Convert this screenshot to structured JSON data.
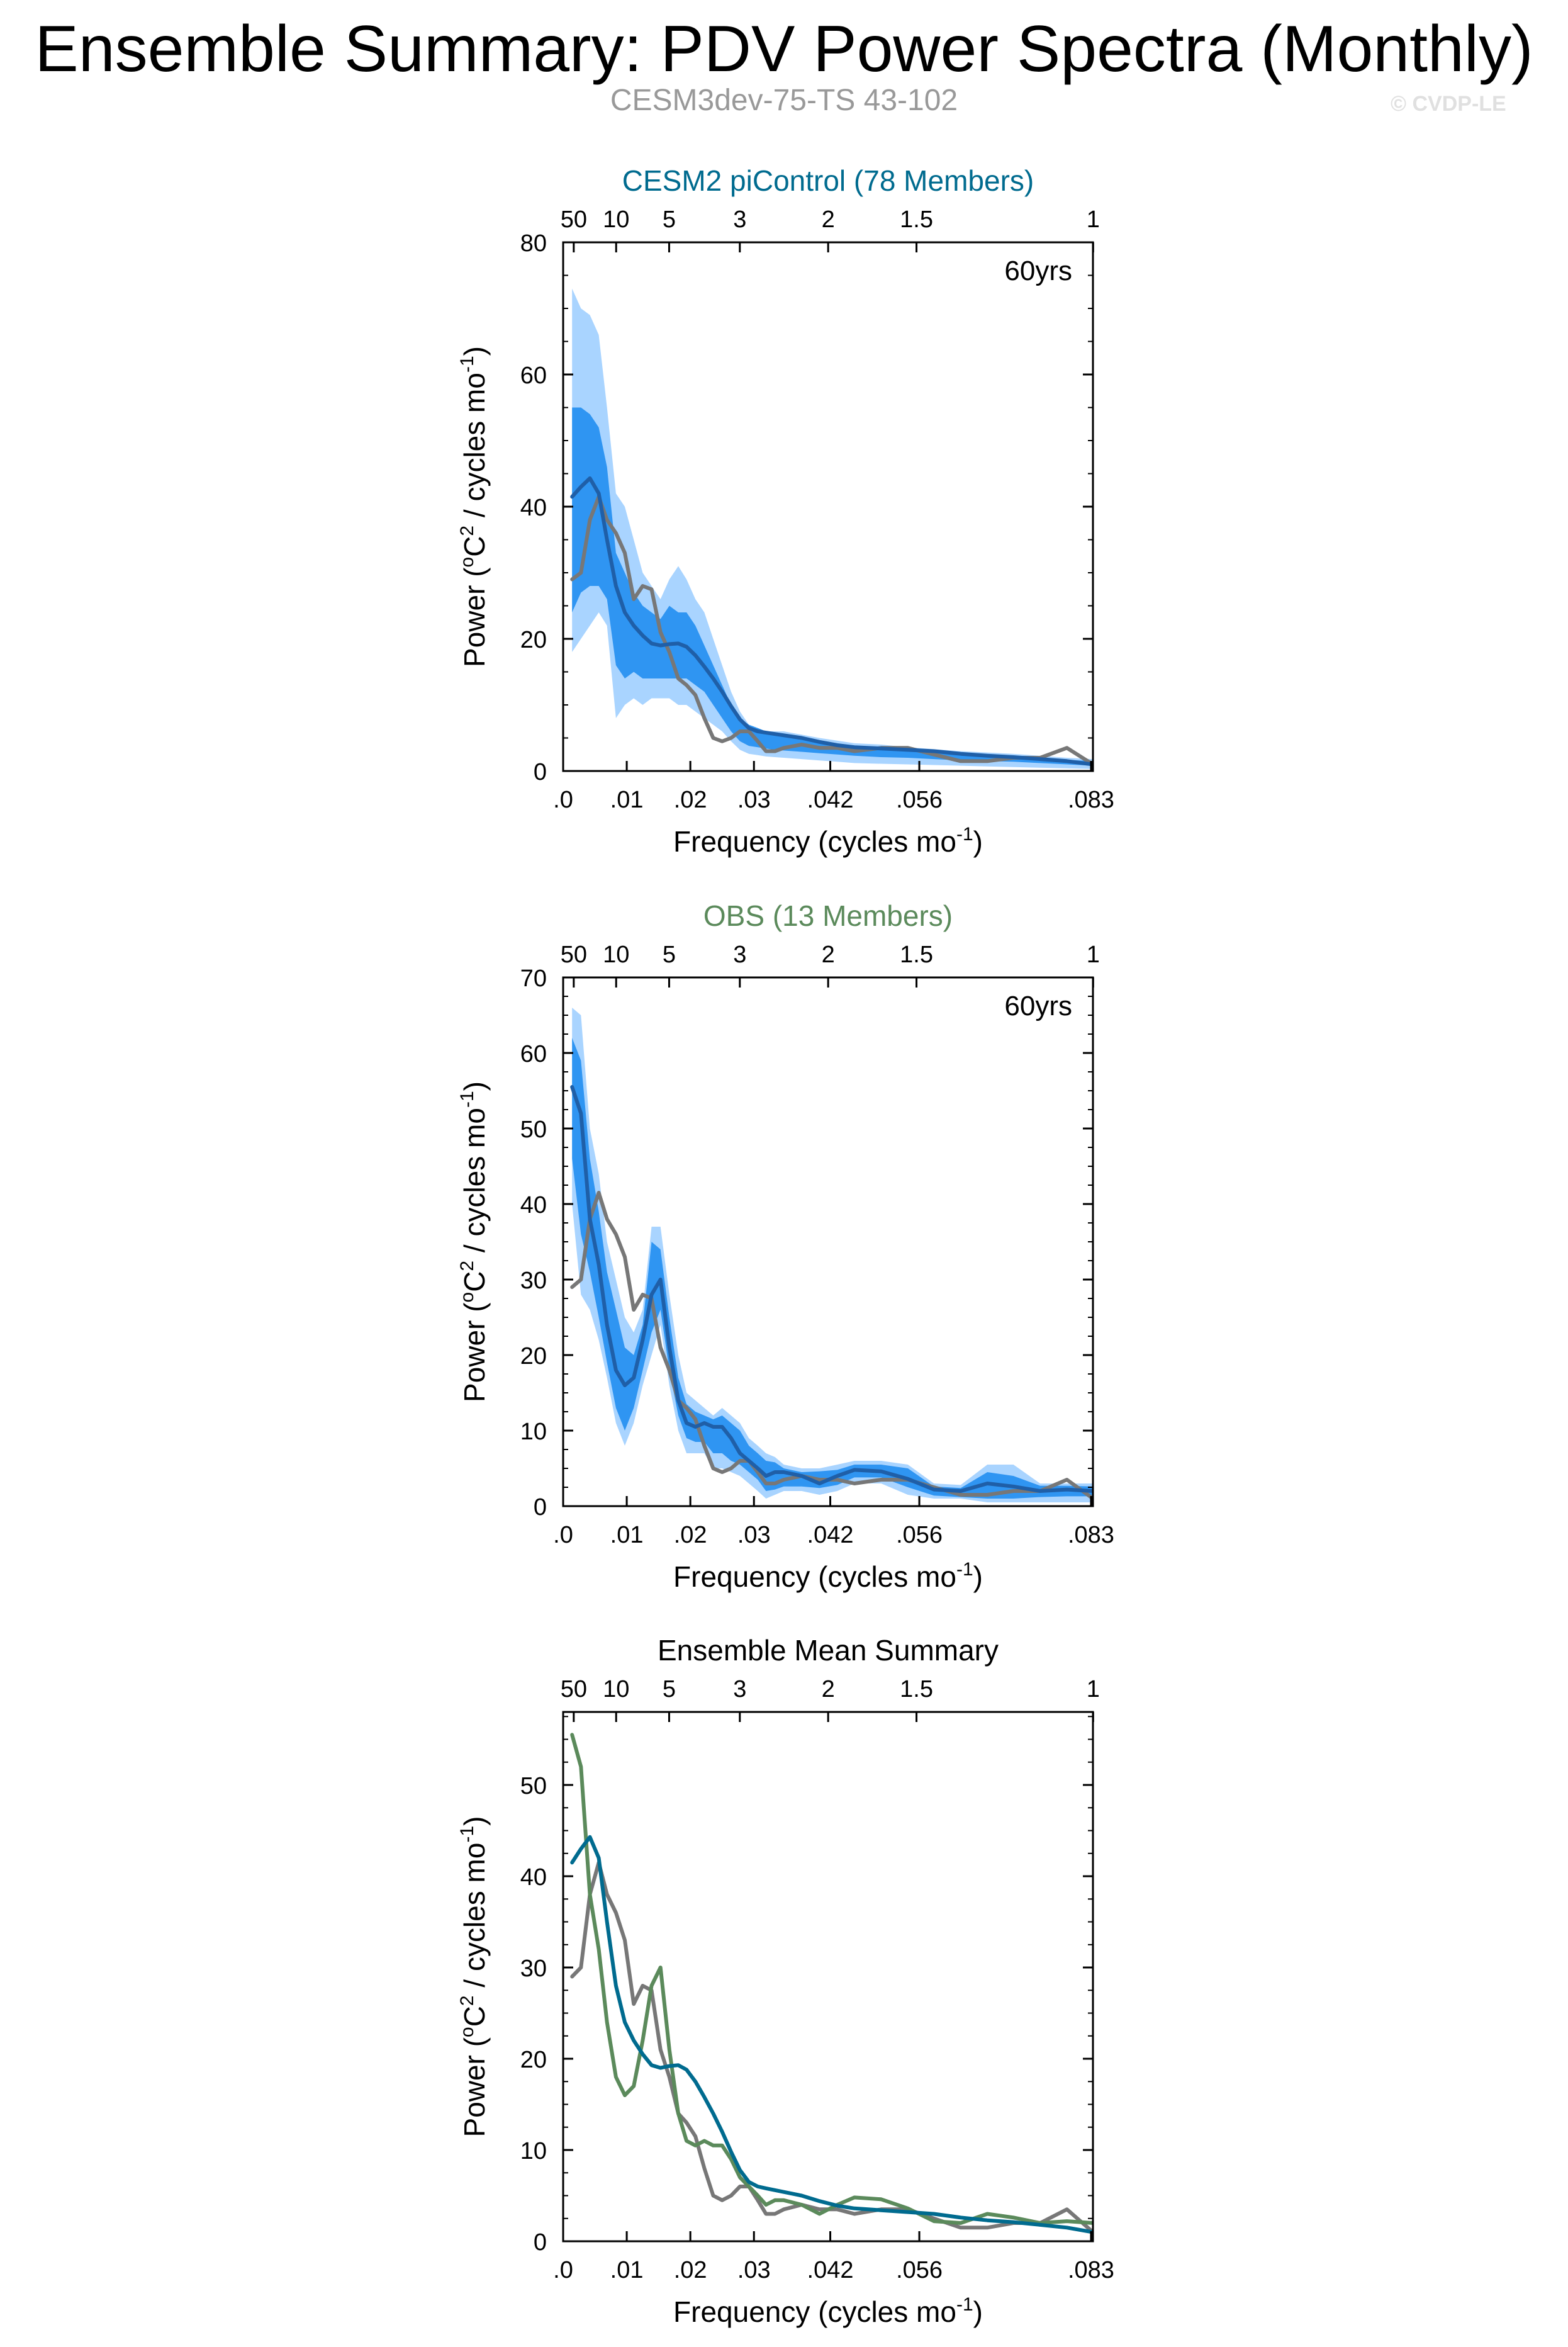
{
  "header": {
    "title": "Ensemble Summary: PDV Power Spectra (Monthly)",
    "subtitle": "CESM3dev-75-TS 43-102",
    "watermark": "© CVDP-LE"
  },
  "colors": {
    "model": "#006b8f",
    "obs": "#5b8a5b",
    "gray": "#777777",
    "blue_dark": "#1f5fa8",
    "band_outer": "#a9d4ff",
    "band_inner": "#2f95f2"
  },
  "chart_data": [
    {
      "type": "line",
      "title": "CESM2 piControl (78 Members)",
      "annotation": "60yrs",
      "xlabel": "Frequency (cycles mo",
      "xlabel_sup": "-1",
      "ylabel_pre": "Power (",
      "ylabel_sup1": "o",
      "ylabel_mid": "C",
      "ylabel_sup2": "2",
      "ylabel_post": " / cycles mo",
      "ylabel_sup3": "-1",
      "ylabel_end": ")",
      "xlim": [
        0,
        0.0833
      ],
      "ylim": [
        0,
        80
      ],
      "yticks": [
        0,
        20,
        40,
        60,
        80
      ],
      "xticks": [
        0,
        0.01,
        0.02,
        0.03,
        0.042,
        0.056,
        0.083
      ],
      "xtick_labels": [
        ".0",
        ".01",
        ".02",
        ".03",
        ".042",
        ".056",
        ".083"
      ],
      "period_ticks": [
        50,
        10,
        5,
        3,
        2,
        1.5,
        1
      ],
      "period_labels": [
        "50",
        "10",
        "5",
        "3",
        "2",
        "1.5",
        "1"
      ],
      "x": [
        0.0014,
        0.0028,
        0.0042,
        0.0056,
        0.0069,
        0.0083,
        0.0097,
        0.0111,
        0.0125,
        0.0139,
        0.0153,
        0.0167,
        0.0181,
        0.0194,
        0.0208,
        0.0222,
        0.0236,
        0.025,
        0.0264,
        0.0278,
        0.0292,
        0.0306,
        0.0319,
        0.0333,
        0.0347,
        0.0375,
        0.0403,
        0.0431,
        0.0458,
        0.05,
        0.0542,
        0.0583,
        0.0625,
        0.0667,
        0.0708,
        0.075,
        0.0792,
        0.0833
      ],
      "series": [
        {
          "key": "band_outer_hi",
          "values": [
            73,
            70,
            69,
            66,
            55,
            42,
            40,
            35,
            30,
            28,
            26,
            29,
            31,
            29,
            26,
            24,
            20,
            16,
            12,
            9,
            7,
            6.5,
            6,
            6,
            6,
            5.5,
            5,
            4.6,
            4.2,
            4,
            3.6,
            3.3,
            3,
            2.8,
            2.6,
            2.3,
            2,
            1.8
          ]
        },
        {
          "key": "band_outer_lo",
          "values": [
            18,
            20,
            22,
            24,
            22,
            8,
            10,
            11,
            10,
            11,
            11,
            11,
            10,
            10,
            9,
            8,
            7,
            6,
            4.5,
            3.2,
            2.6,
            2.4,
            2.2,
            2.1,
            2,
            1.8,
            1.6,
            1.4,
            1.2,
            1.1,
            1,
            0.9,
            0.8,
            0.7,
            0.6,
            0.5,
            0.4,
            0.3
          ]
        },
        {
          "key": "band_inner_hi",
          "values": [
            55,
            55,
            54,
            52,
            46,
            33,
            30,
            27,
            25,
            24,
            23,
            25,
            24,
            24,
            22,
            19,
            16,
            13,
            10,
            8,
            7,
            6.5,
            6,
            5.6,
            5.3,
            4.9,
            4.4,
            4,
            3.6,
            3.4,
            3.1,
            2.8,
            2.6,
            2.4,
            2.2,
            2,
            1.7,
            1.5
          ]
        },
        {
          "key": "band_inner_lo",
          "values": [
            24,
            27,
            28,
            28,
            26,
            16,
            14,
            15,
            14,
            14,
            14,
            14,
            14,
            14,
            13,
            12,
            10,
            8,
            6,
            4.5,
            3.8,
            3.6,
            3.4,
            3.2,
            3.1,
            2.9,
            2.7,
            2.5,
            2.3,
            2.1,
            2,
            1.8,
            1.6,
            1.5,
            1.4,
            1.2,
            1,
            0.8
          ]
        },
        {
          "key": "ens_mean",
          "values": [
            41.5,
            43,
            44.3,
            42,
            35,
            28,
            24,
            22,
            20.5,
            19.3,
            19,
            19.2,
            19.3,
            18.8,
            17.5,
            15.8,
            14,
            12,
            9.8,
            7.8,
            6.5,
            6,
            5.8,
            5.6,
            5.4,
            5,
            4.4,
            3.9,
            3.6,
            3.4,
            3.2,
            3,
            2.6,
            2.3,
            2.1,
            1.8,
            1.5,
            1
          ]
        },
        {
          "key": "obs_gray",
          "values": [
            29,
            30,
            38,
            41.5,
            38,
            36,
            33,
            26,
            28,
            27.5,
            21,
            18,
            14,
            13,
            11.5,
            8,
            5,
            4.5,
            5,
            6,
            6,
            4.5,
            3,
            3,
            3.5,
            4,
            3.5,
            3.5,
            3,
            3.5,
            3.5,
            2.5,
            1.5,
            1.5,
            2,
            2,
            3.5,
            1
          ]
        }
      ]
    },
    {
      "type": "line",
      "title": "OBS (13 Members)",
      "annotation": "60yrs",
      "xlabel": "Frequency (cycles mo",
      "xlabel_sup": "-1",
      "ylabel_pre": "Power (",
      "ylabel_sup1": "o",
      "ylabel_mid": "C",
      "ylabel_sup2": "2",
      "ylabel_post": " / cycles mo",
      "ylabel_sup3": "-1",
      "ylabel_end": ")",
      "xlim": [
        0,
        0.0833
      ],
      "ylim": [
        0,
        70
      ],
      "yticks": [
        0,
        10,
        20,
        30,
        40,
        50,
        60,
        70
      ],
      "xticks": [
        0,
        0.01,
        0.02,
        0.03,
        0.042,
        0.056,
        0.083
      ],
      "xtick_labels": [
        ".0",
        ".01",
        ".02",
        ".03",
        ".042",
        ".056",
        ".083"
      ],
      "period_ticks": [
        50,
        10,
        5,
        3,
        2,
        1.5,
        1
      ],
      "period_labels": [
        "50",
        "10",
        "5",
        "3",
        "2",
        "1.5",
        "1"
      ],
      "x": [
        0.0014,
        0.0028,
        0.0042,
        0.0056,
        0.0069,
        0.0083,
        0.0097,
        0.0111,
        0.0125,
        0.0139,
        0.0153,
        0.0167,
        0.0181,
        0.0194,
        0.0208,
        0.0222,
        0.0236,
        0.025,
        0.0264,
        0.0278,
        0.0292,
        0.0306,
        0.0319,
        0.0333,
        0.0347,
        0.0375,
        0.0403,
        0.0431,
        0.0458,
        0.05,
        0.0542,
        0.0583,
        0.0625,
        0.0667,
        0.0708,
        0.075,
        0.0792,
        0.0833
      ],
      "series": [
        {
          "key": "band_outer_hi",
          "values": [
            66,
            65,
            50,
            44,
            35,
            30,
            25,
            23,
            26,
            37,
            37,
            28,
            20,
            15,
            14,
            13,
            12,
            13,
            12,
            11,
            9,
            8,
            7,
            6.5,
            5.5,
            5,
            5,
            5.5,
            6,
            6,
            5.5,
            3,
            2.8,
            5.5,
            5.5,
            3,
            3,
            3
          ]
        },
        {
          "key": "band_outer_lo",
          "values": [
            40,
            28,
            26,
            22,
            17,
            11,
            8,
            11,
            16,
            20,
            24,
            16,
            10,
            7,
            7,
            7,
            5,
            5,
            4.5,
            4,
            3,
            2,
            1,
            1.5,
            2,
            2,
            1.5,
            2,
            3,
            3,
            1.5,
            1,
            1,
            0.5,
            0.5,
            0.5,
            0.5,
            0.5
          ]
        },
        {
          "key": "band_inner_hi",
          "values": [
            62,
            59,
            46,
            39,
            31,
            26,
            21,
            20,
            24,
            35,
            34,
            25,
            17,
            13.5,
            12.5,
            12,
            11.5,
            12,
            11,
            10,
            8,
            7,
            6,
            5.8,
            5,
            4.5,
            4.6,
            4.8,
            5.5,
            5.5,
            5,
            2.6,
            2.4,
            4.5,
            4,
            2.7,
            2.7,
            2.6
          ]
        },
        {
          "key": "band_inner_lo",
          "values": [
            46,
            36,
            31,
            25,
            19,
            13,
            10,
            13,
            18,
            23,
            26,
            18,
            12,
            9,
            8.5,
            8.5,
            7,
            7,
            6,
            5.5,
            4.5,
            3.5,
            2,
            2.2,
            2.6,
            2.6,
            2.4,
            2.8,
            3.8,
            3.8,
            2.5,
            1.4,
            1.2,
            1,
            1,
            1.2,
            1.3,
            1.3
          ]
        },
        {
          "key": "ens_mean",
          "values": [
            55.5,
            52,
            38,
            32,
            24,
            18,
            16,
            17,
            22,
            28,
            30,
            21,
            14,
            11,
            10.5,
            11,
            10.5,
            10.5,
            9,
            7,
            6,
            5,
            4,
            4.5,
            4.5,
            4,
            3,
            4,
            4.8,
            4.6,
            3.6,
            2.2,
            2,
            3,
            2.6,
            2,
            2.2,
            2
          ]
        },
        {
          "key": "obs_gray",
          "values": [
            29,
            30,
            38,
            41.5,
            38,
            36,
            33,
            26,
            28,
            27.5,
            21,
            18,
            14,
            13,
            11.5,
            8,
            5,
            4.5,
            5,
            6,
            6,
            4.5,
            3,
            3,
            3.5,
            4,
            3.5,
            3.5,
            3,
            3.5,
            3.5,
            2.5,
            1.5,
            1.5,
            2,
            2,
            3.5,
            1
          ]
        }
      ]
    },
    {
      "type": "line",
      "title": "Ensemble Mean Summary",
      "annotation": "",
      "xlabel": "Frequency (cycles mo",
      "xlabel_sup": "-1",
      "ylabel_pre": "Power (",
      "ylabel_sup1": "o",
      "ylabel_mid": "C",
      "ylabel_sup2": "2",
      "ylabel_post": " / cycles mo",
      "ylabel_sup3": "-1",
      "ylabel_end": ")",
      "xlim": [
        0,
        0.0833
      ],
      "ylim": [
        0,
        58
      ],
      "yticks": [
        0,
        10,
        20,
        30,
        40,
        50
      ],
      "xticks": [
        0,
        0.01,
        0.02,
        0.03,
        0.042,
        0.056,
        0.083
      ],
      "xtick_labels": [
        ".0",
        ".01",
        ".02",
        ".03",
        ".042",
        ".056",
        ".083"
      ],
      "period_ticks": [
        50,
        10,
        5,
        3,
        2,
        1.5,
        1
      ],
      "period_labels": [
        "50",
        "10",
        "5",
        "3",
        "2",
        "1.5",
        "1"
      ],
      "x": [
        0.0014,
        0.0028,
        0.0042,
        0.0056,
        0.0069,
        0.0083,
        0.0097,
        0.0111,
        0.0125,
        0.0139,
        0.0153,
        0.0167,
        0.0181,
        0.0194,
        0.0208,
        0.0222,
        0.0236,
        0.025,
        0.0264,
        0.0278,
        0.0292,
        0.0306,
        0.0319,
        0.0333,
        0.0347,
        0.0375,
        0.0403,
        0.0431,
        0.0458,
        0.05,
        0.0542,
        0.0583,
        0.0625,
        0.0667,
        0.0708,
        0.075,
        0.0792,
        0.0833
      ],
      "series": [
        {
          "key": "obs_gray",
          "values": [
            29,
            30,
            38,
            41.5,
            38,
            36,
            33,
            26,
            28,
            27.5,
            21,
            18,
            14,
            13,
            11.5,
            8,
            5,
            4.5,
            5,
            6,
            6,
            4.5,
            3,
            3,
            3.5,
            4,
            3.5,
            3.5,
            3,
            3.5,
            3.5,
            2.5,
            1.5,
            1.5,
            2,
            2,
            3.5,
            1
          ]
        },
        {
          "key": "obs_mean",
          "values": [
            55.5,
            52,
            38,
            32,
            24,
            18,
            16,
            17,
            22,
            28,
            30,
            21,
            14,
            11,
            10.5,
            11,
            10.5,
            10.5,
            9,
            7,
            6,
            5,
            4,
            4.5,
            4.5,
            4,
            3,
            4,
            4.8,
            4.6,
            3.6,
            2.2,
            2,
            3,
            2.6,
            2,
            2.2,
            2
          ]
        },
        {
          "key": "model_mean",
          "values": [
            41.5,
            43,
            44.3,
            42,
            35,
            28,
            24,
            22,
            20.5,
            19.3,
            19,
            19.2,
            19.3,
            18.8,
            17.5,
            15.8,
            14,
            12,
            9.8,
            7.8,
            6.5,
            6,
            5.8,
            5.6,
            5.4,
            5,
            4.4,
            3.9,
            3.6,
            3.4,
            3.2,
            3,
            2.6,
            2.3,
            2.1,
            1.8,
            1.5,
            1
          ]
        }
      ]
    }
  ]
}
